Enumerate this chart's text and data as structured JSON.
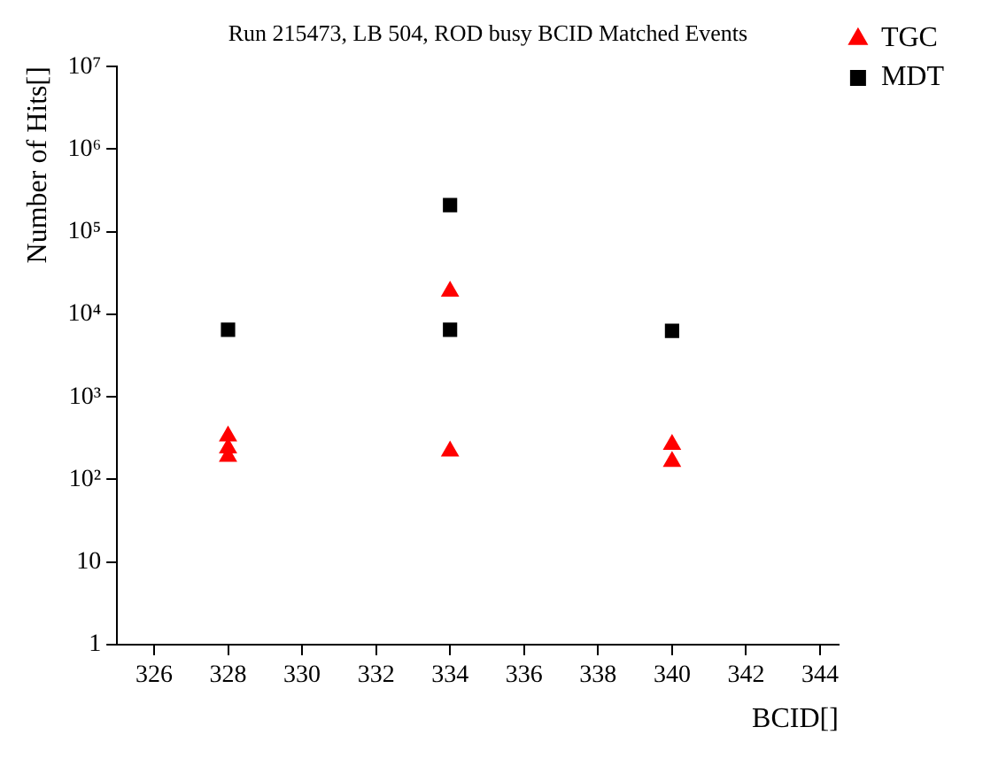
{
  "chart_data": {
    "type": "scatter",
    "title": "Run 215473, LB 504, ROD busy BCID Matched Events",
    "xlabel": "BCID[]",
    "ylabel": "Number of Hits[]",
    "xlim": [
      325,
      344.5
    ],
    "xticks": [
      326,
      328,
      330,
      332,
      334,
      336,
      338,
      340,
      342,
      344
    ],
    "ylim": [
      1,
      10000000
    ],
    "yticks": [
      1,
      10,
      {
        "value": 100,
        "label": "10²"
      },
      {
        "value": 1000,
        "label": "10³"
      },
      {
        "value": 10000,
        "label": "10⁴"
      },
      {
        "value": 100000,
        "label": "10⁵"
      },
      {
        "value": 1000000,
        "label": "10⁶"
      },
      {
        "value": 10000000,
        "label": "10⁷"
      }
    ],
    "log": "y",
    "grid": false,
    "legend": "top right",
    "series": [
      {
        "name": "TGC",
        "color": "#ff0000",
        "marker": "triangle",
        "x": [
          328,
          328,
          328,
          334,
          334,
          340,
          340
        ],
        "values": [
          335,
          240,
          190,
          19000,
          220,
          265,
          165
        ]
      },
      {
        "name": "MDT",
        "color": "#000000",
        "marker": "square",
        "x": [
          328,
          334,
          334,
          340
        ],
        "values": [
          6500,
          210000,
          6500,
          6300
        ]
      }
    ]
  }
}
